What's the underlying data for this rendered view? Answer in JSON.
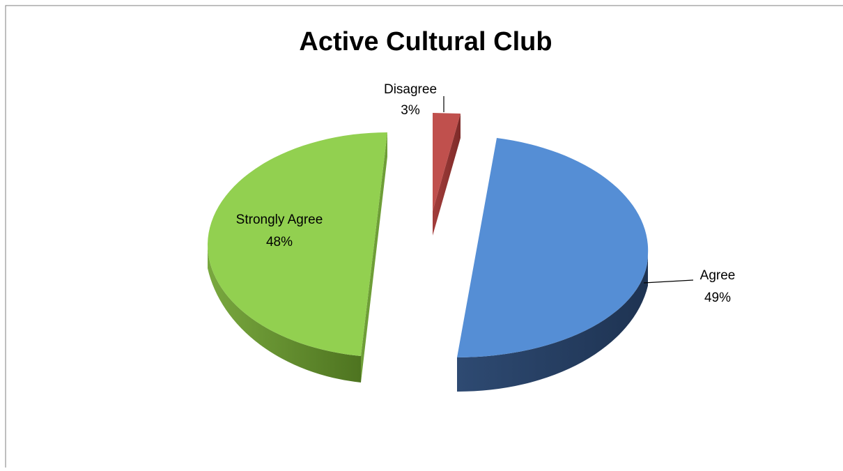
{
  "chart_data": {
    "type": "pie",
    "style": "3d-exploded",
    "title": "Active Cultural Club",
    "slices": [
      {
        "label": "Agree",
        "value": 49,
        "display": "49%",
        "color": "#558ED5"
      },
      {
        "label": "Disagree",
        "value": 3,
        "display": "3%",
        "color": "#C0504D"
      },
      {
        "label": "Strongly Agree",
        "value": 48,
        "display": "48%",
        "color": "#92D050"
      }
    ],
    "legend": "none"
  }
}
